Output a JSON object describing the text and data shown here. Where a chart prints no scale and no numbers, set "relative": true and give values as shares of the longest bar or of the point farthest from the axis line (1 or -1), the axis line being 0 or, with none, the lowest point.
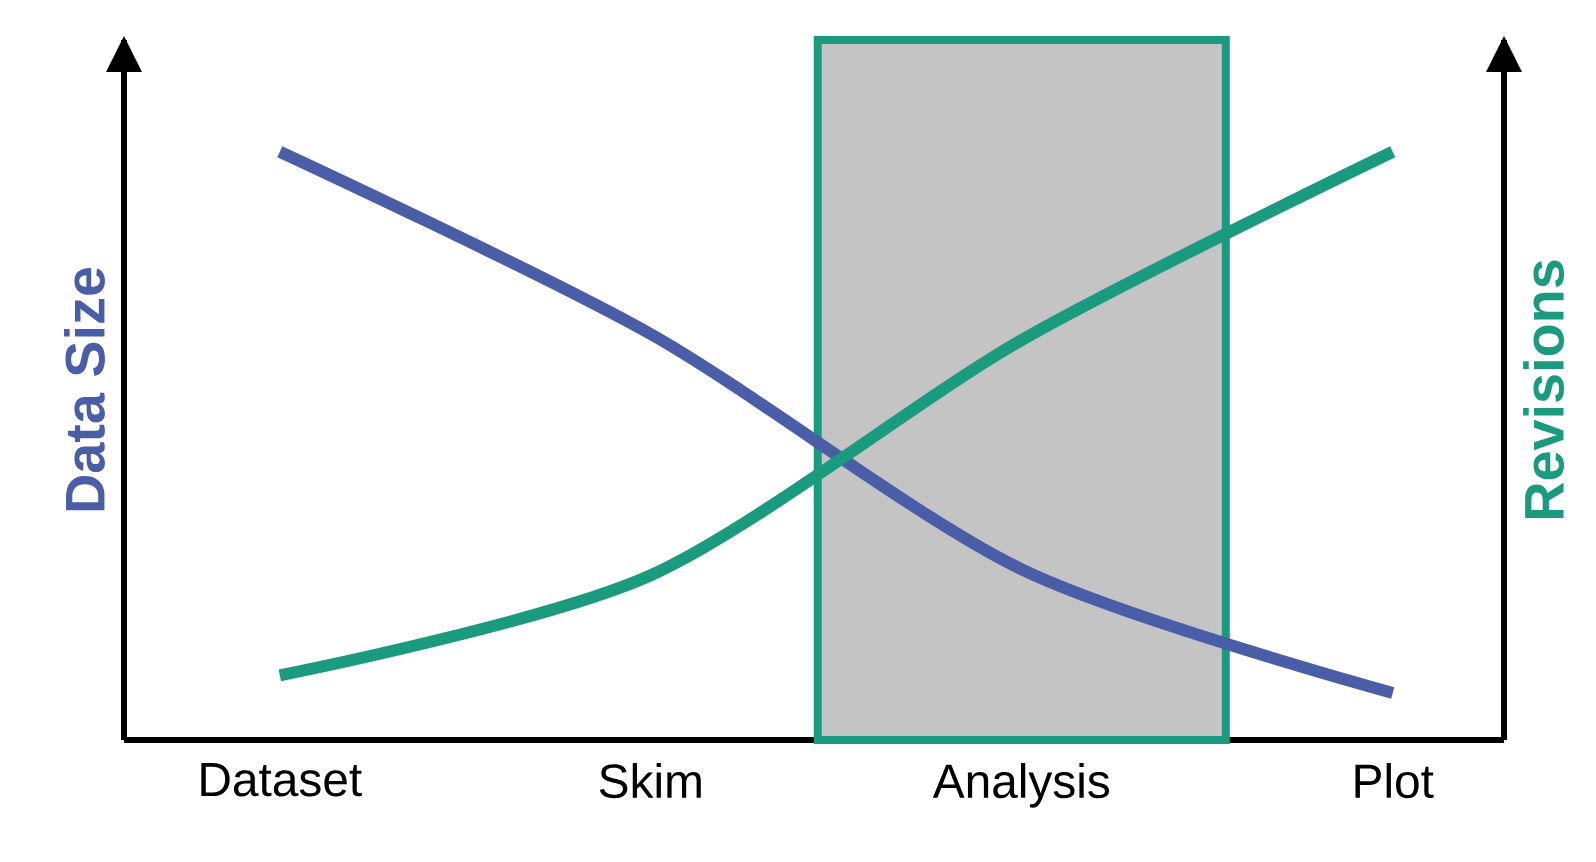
{
  "chart_data": {
    "type": "line",
    "relative": true,
    "ylabel": "Data Size",
    "y2label": "Revisions",
    "categories": [
      "Dataset",
      "Skim",
      "Analysis",
      "Plot"
    ],
    "series": [
      {
        "color": "#4a5ea8",
        "values": [
          1,
          0.69,
          0.29,
          0.08
        ]
      },
      {
        "color": "#1a9a7e",
        "axis": "y2",
        "values": [
          0.11,
          0.28,
          0.68,
          1
        ]
      }
    ],
    "bands": [
      {
        "axis": "x",
        "from": "Analysis",
        "to": "Analysis",
        "color": "#c4c4c4"
      }
    ],
    "line_style": "solid",
    "marker": "none",
    "grid": false,
    "legend": false
  }
}
